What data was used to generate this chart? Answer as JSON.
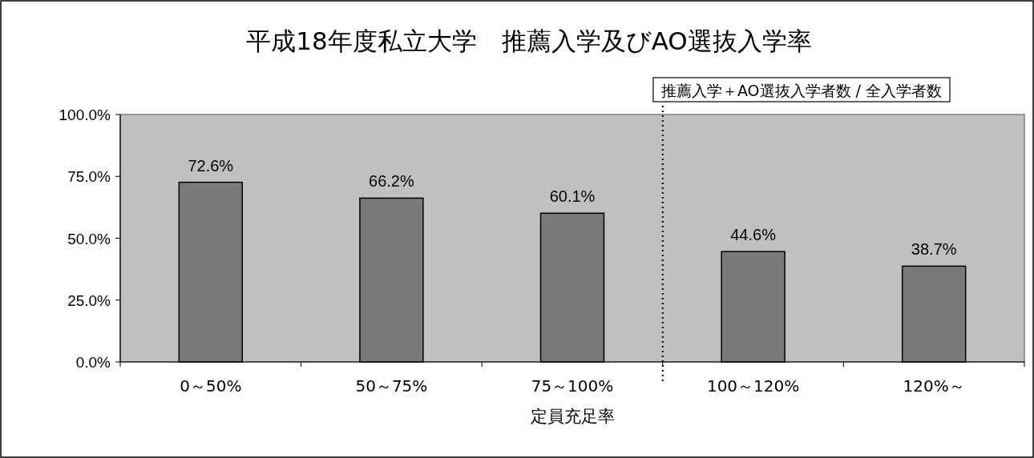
{
  "chart_data": {
    "type": "bar",
    "title": "平成18年度私立大学　推薦入学及びAO選抜入学率",
    "subtitle": "推薦入学＋AO選抜入学者数 / 全入学者数",
    "xlabel": "定員充足率",
    "categories": [
      "0～50%",
      "50～75%",
      "75～100%",
      "100～120%",
      "120%～"
    ],
    "values": [
      72.6,
      66.2,
      60.1,
      44.6,
      38.7
    ],
    "value_labels": [
      "72.6%",
      "66.2%",
      "60.1%",
      "44.6%",
      "38.7%"
    ],
    "color": "#7a7a7a",
    "ylim": [
      0,
      100
    ],
    "yticks": [
      {
        "value": 0,
        "label": "0.0%"
      },
      {
        "value": 25,
        "label": "25.0%"
      },
      {
        "value": 50,
        "label": "50.0%"
      },
      {
        "value": 75,
        "label": "75.0%"
      },
      {
        "value": 100,
        "label": "100.0%"
      }
    ],
    "grid": false
  }
}
